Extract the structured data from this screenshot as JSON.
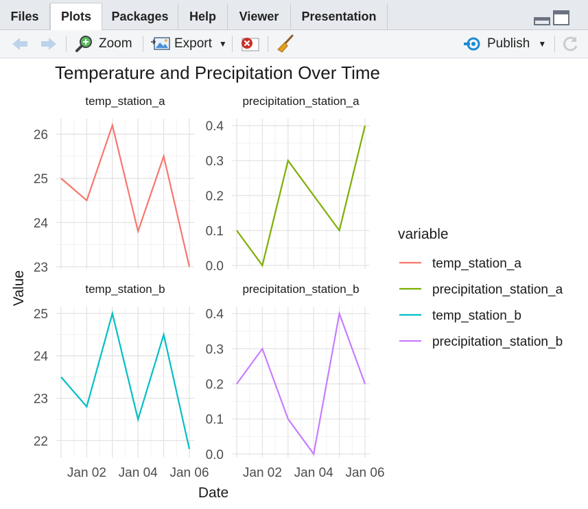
{
  "tabs": [
    {
      "label": "Files",
      "active": false
    },
    {
      "label": "Plots",
      "active": true
    },
    {
      "label": "Packages",
      "active": false
    },
    {
      "label": "Help",
      "active": false
    },
    {
      "label": "Viewer",
      "active": false
    },
    {
      "label": "Presentation",
      "active": false
    }
  ],
  "toolbar": {
    "zoom_label": "Zoom",
    "export_label": "Export",
    "publish_label": "Publish",
    "icons": {
      "back": "arrow-left-icon",
      "forward": "arrow-right-icon",
      "zoom": "magnifier-icon",
      "export": "export-image-icon",
      "remove": "remove-plot-icon",
      "clear": "broom-icon",
      "publish": "publish-icon",
      "refresh": "refresh-icon"
    }
  },
  "chart_data": {
    "type": "line",
    "title": "Temperature and Precipitation Over Time",
    "xlabel": "Date",
    "ylabel": "Value",
    "grid": true,
    "legend": {
      "title": "variable",
      "placement": "right",
      "entries": [
        "temp_station_a",
        "precipitation_station_a",
        "temp_station_b",
        "precipitation_station_b"
      ]
    },
    "x": [
      "2023-01-01",
      "2023-01-02",
      "2023-01-03",
      "2023-01-04",
      "2023-01-05",
      "2023-01-06"
    ],
    "x_tick_labels": [
      "Jan 02",
      "Jan 04",
      "Jan 06"
    ],
    "colors": {
      "temp_station_a": "#f8766d",
      "precipitation_station_a": "#7cae00",
      "temp_station_b": "#00bfc4",
      "precipitation_station_b": "#c77cff"
    },
    "panels": [
      {
        "name": "temp_station_a",
        "values": [
          25.0,
          24.5,
          26.2,
          23.8,
          25.5,
          23.0
        ],
        "ylim": [
          22.95,
          26.35
        ],
        "yticks": [
          23,
          24,
          25,
          26
        ]
      },
      {
        "name": "precipitation_station_a",
        "values": [
          0.1,
          0.0,
          0.3,
          0.2,
          0.1,
          0.4
        ],
        "ylim": [
          -0.01,
          0.42
        ],
        "yticks": [
          "0.0",
          "0.1",
          "0.2",
          "0.3",
          "0.4"
        ]
      },
      {
        "name": "temp_station_b",
        "values": [
          23.5,
          22.8,
          25.0,
          22.5,
          24.5,
          21.8
        ],
        "ylim": [
          21.6,
          25.16
        ],
        "yticks": [
          22,
          23,
          24,
          25
        ]
      },
      {
        "name": "precipitation_station_b",
        "values": [
          0.2,
          0.3,
          0.1,
          0.0,
          0.4,
          0.2
        ],
        "ylim": [
          -0.01,
          0.42
        ],
        "yticks": [
          "0.0",
          "0.1",
          "0.2",
          "0.3",
          "0.4"
        ]
      }
    ]
  }
}
